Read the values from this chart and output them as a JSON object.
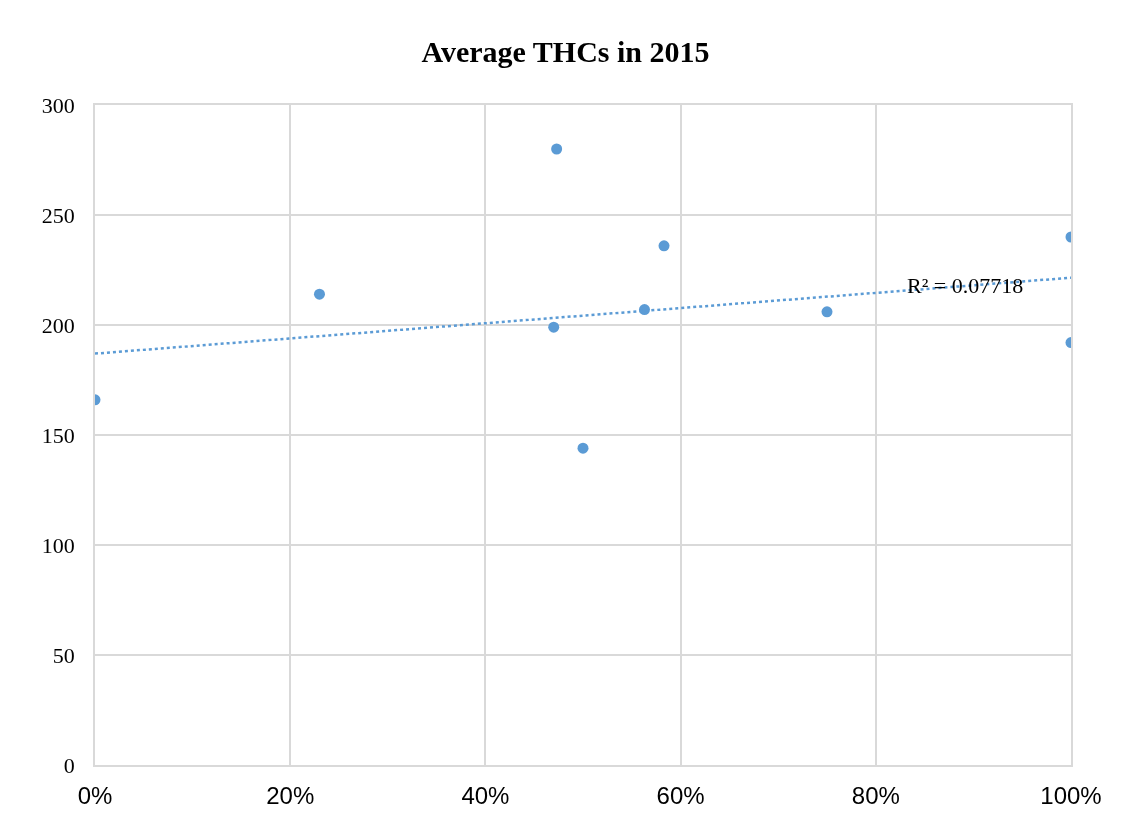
{
  "chart_data": {
    "type": "scatter",
    "title": "Average THCs in 2015",
    "series": [
      {
        "color": "#5b9bd5",
        "marker": "circle",
        "x": [
          0,
          23,
          47.3,
          47,
          50,
          56.3,
          58.3,
          75,
          100,
          100
        ],
        "values": [
          166,
          214,
          280,
          199,
          144,
          207,
          236,
          206,
          240,
          192
        ]
      },
      {
        "type": "line",
        "color": "#5b9bd5",
        "line_style": "dotted",
        "marker": "none",
        "x": [
          0,
          100
        ],
        "values": [
          187,
          221.5
        ]
      }
    ],
    "annotations": [
      {
        "text": "R² = 0.07718",
        "x": 83,
        "y": 218
      }
    ],
    "xlim": [
      0,
      100
    ],
    "ylim": [
      0,
      300
    ],
    "xticks": [
      {
        "value": 0,
        "label": "0%"
      },
      {
        "value": 20,
        "label": "20%"
      },
      {
        "value": 40,
        "label": "40%"
      },
      {
        "value": 60,
        "label": "60%"
      },
      {
        "value": 80,
        "label": "80%"
      },
      {
        "value": 100,
        "label": "100%"
      }
    ],
    "yticks": [
      0,
      50,
      100,
      150,
      200,
      250,
      300
    ],
    "grid": true
  }
}
